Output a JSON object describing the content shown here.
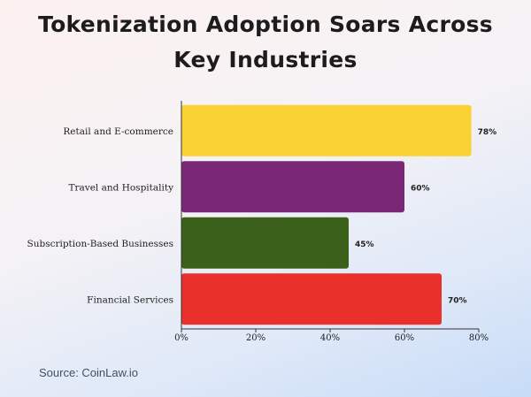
{
  "chart_data": {
    "type": "bar",
    "orientation": "horizontal",
    "title": "Tokenization Adoption Soars Across Key Industries",
    "categories": [
      "Retail and E-commerce",
      "Travel and Hospitality",
      "Subscription-Based Businesses",
      "Financial Services"
    ],
    "values": [
      78,
      60,
      45,
      70
    ],
    "value_labels": [
      "78%",
      "60%",
      "45%",
      "70%"
    ],
    "colors": [
      "#fbd233",
      "#7a2876",
      "#3b6019",
      "#e9302b"
    ],
    "xlim": [
      0,
      80
    ],
    "x_ticks": [
      0,
      20,
      40,
      60,
      80
    ],
    "x_tick_labels": [
      "0%",
      "20%",
      "40%",
      "60%",
      "80%"
    ],
    "grid": false,
    "legend": "none"
  },
  "source": "Source: CoinLaw.io"
}
